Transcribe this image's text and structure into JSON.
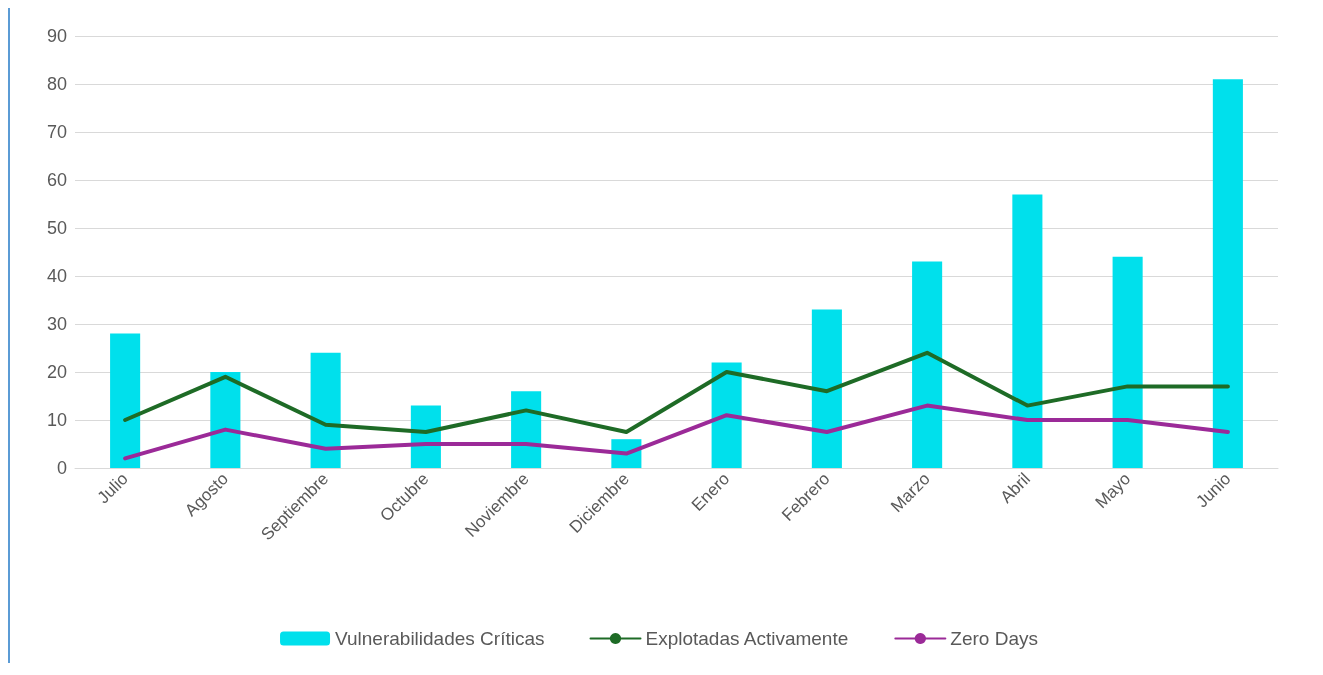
{
  "chart_data": {
    "type": "bar",
    "categories": [
      "Julio",
      "Agosto",
      "Septiembre",
      "Octubre",
      "Noviembre",
      "Diciembre",
      "Enero",
      "Febrero",
      "Marzo",
      "Abril",
      "Mayo",
      "Junio"
    ],
    "series": [
      {
        "name": "Vulnerabilidades Críticas",
        "color": "#00e0ec",
        "values": [
          28,
          20,
          24,
          13,
          16,
          6,
          22,
          33,
          43,
          57,
          44,
          81
        ]
      },
      {
        "name": "Explotadas Activamente",
        "type": "line",
        "color": "#1e6b26",
        "values": [
          10,
          19,
          9,
          7.5,
          12,
          7.5,
          20,
          16,
          24,
          13,
          17,
          17
        ]
      },
      {
        "name": "Zero Days",
        "type": "line",
        "color": "#9b2a98",
        "values": [
          2,
          8,
          4,
          5,
          5,
          3,
          11,
          7.5,
          13,
          10,
          10,
          7.5
        ]
      }
    ],
    "ylim": [
      0,
      90
    ],
    "yticks": [
      0,
      10,
      20,
      30,
      40,
      50,
      60,
      70,
      80,
      90
    ],
    "grid": "y",
    "legend": "bottom",
    "marker": "none",
    "line_style": "solid"
  }
}
